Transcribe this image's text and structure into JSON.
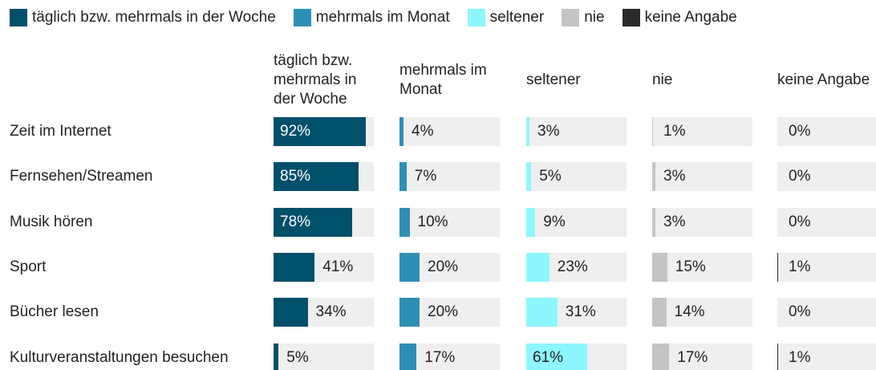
{
  "chart_data": {
    "type": "bar",
    "categories": [
      "Zeit im Internet",
      "Fernsehen/Streamen",
      "Musik hören",
      "Sport",
      "Bücher lesen",
      "Kulturveranstaltungen besuchen"
    ],
    "xlim": [
      0,
      100
    ],
    "series": [
      {
        "name": "täglich bzw. mehrmals in der Woche",
        "color": "#004f6b",
        "values": [
          92,
          85,
          78,
          41,
          34,
          5
        ],
        "value_labels": [
          "92%",
          "85%",
          "78%",
          "41%",
          "34%",
          "5%"
        ]
      },
      {
        "name": "mehrmals im Monat",
        "color": "#2e8fb5",
        "values": [
          4,
          7,
          10,
          20,
          20,
          17
        ],
        "value_labels": [
          "4%",
          "7%",
          "10%",
          "20%",
          "20%",
          "17%"
        ]
      },
      {
        "name": "seltener",
        "color": "#8ef6ff",
        "values": [
          3,
          5,
          9,
          23,
          31,
          61
        ],
        "value_labels": [
          "3%",
          "5%",
          "9%",
          "23%",
          "31%",
          "61%"
        ]
      },
      {
        "name": "nie",
        "color": "#c4c4c4",
        "values": [
          1,
          3,
          3,
          15,
          14,
          17
        ],
        "value_labels": [
          "1%",
          "3%",
          "3%",
          "15%",
          "14%",
          "17%"
        ]
      },
      {
        "name": "keine Angabe",
        "color": "#2b2b2b",
        "values": [
          0,
          0,
          0,
          1,
          0,
          1
        ],
        "value_labels": [
          "0%",
          "0%",
          "0%",
          "1%",
          "0%",
          "1%"
        ]
      }
    ]
  }
}
